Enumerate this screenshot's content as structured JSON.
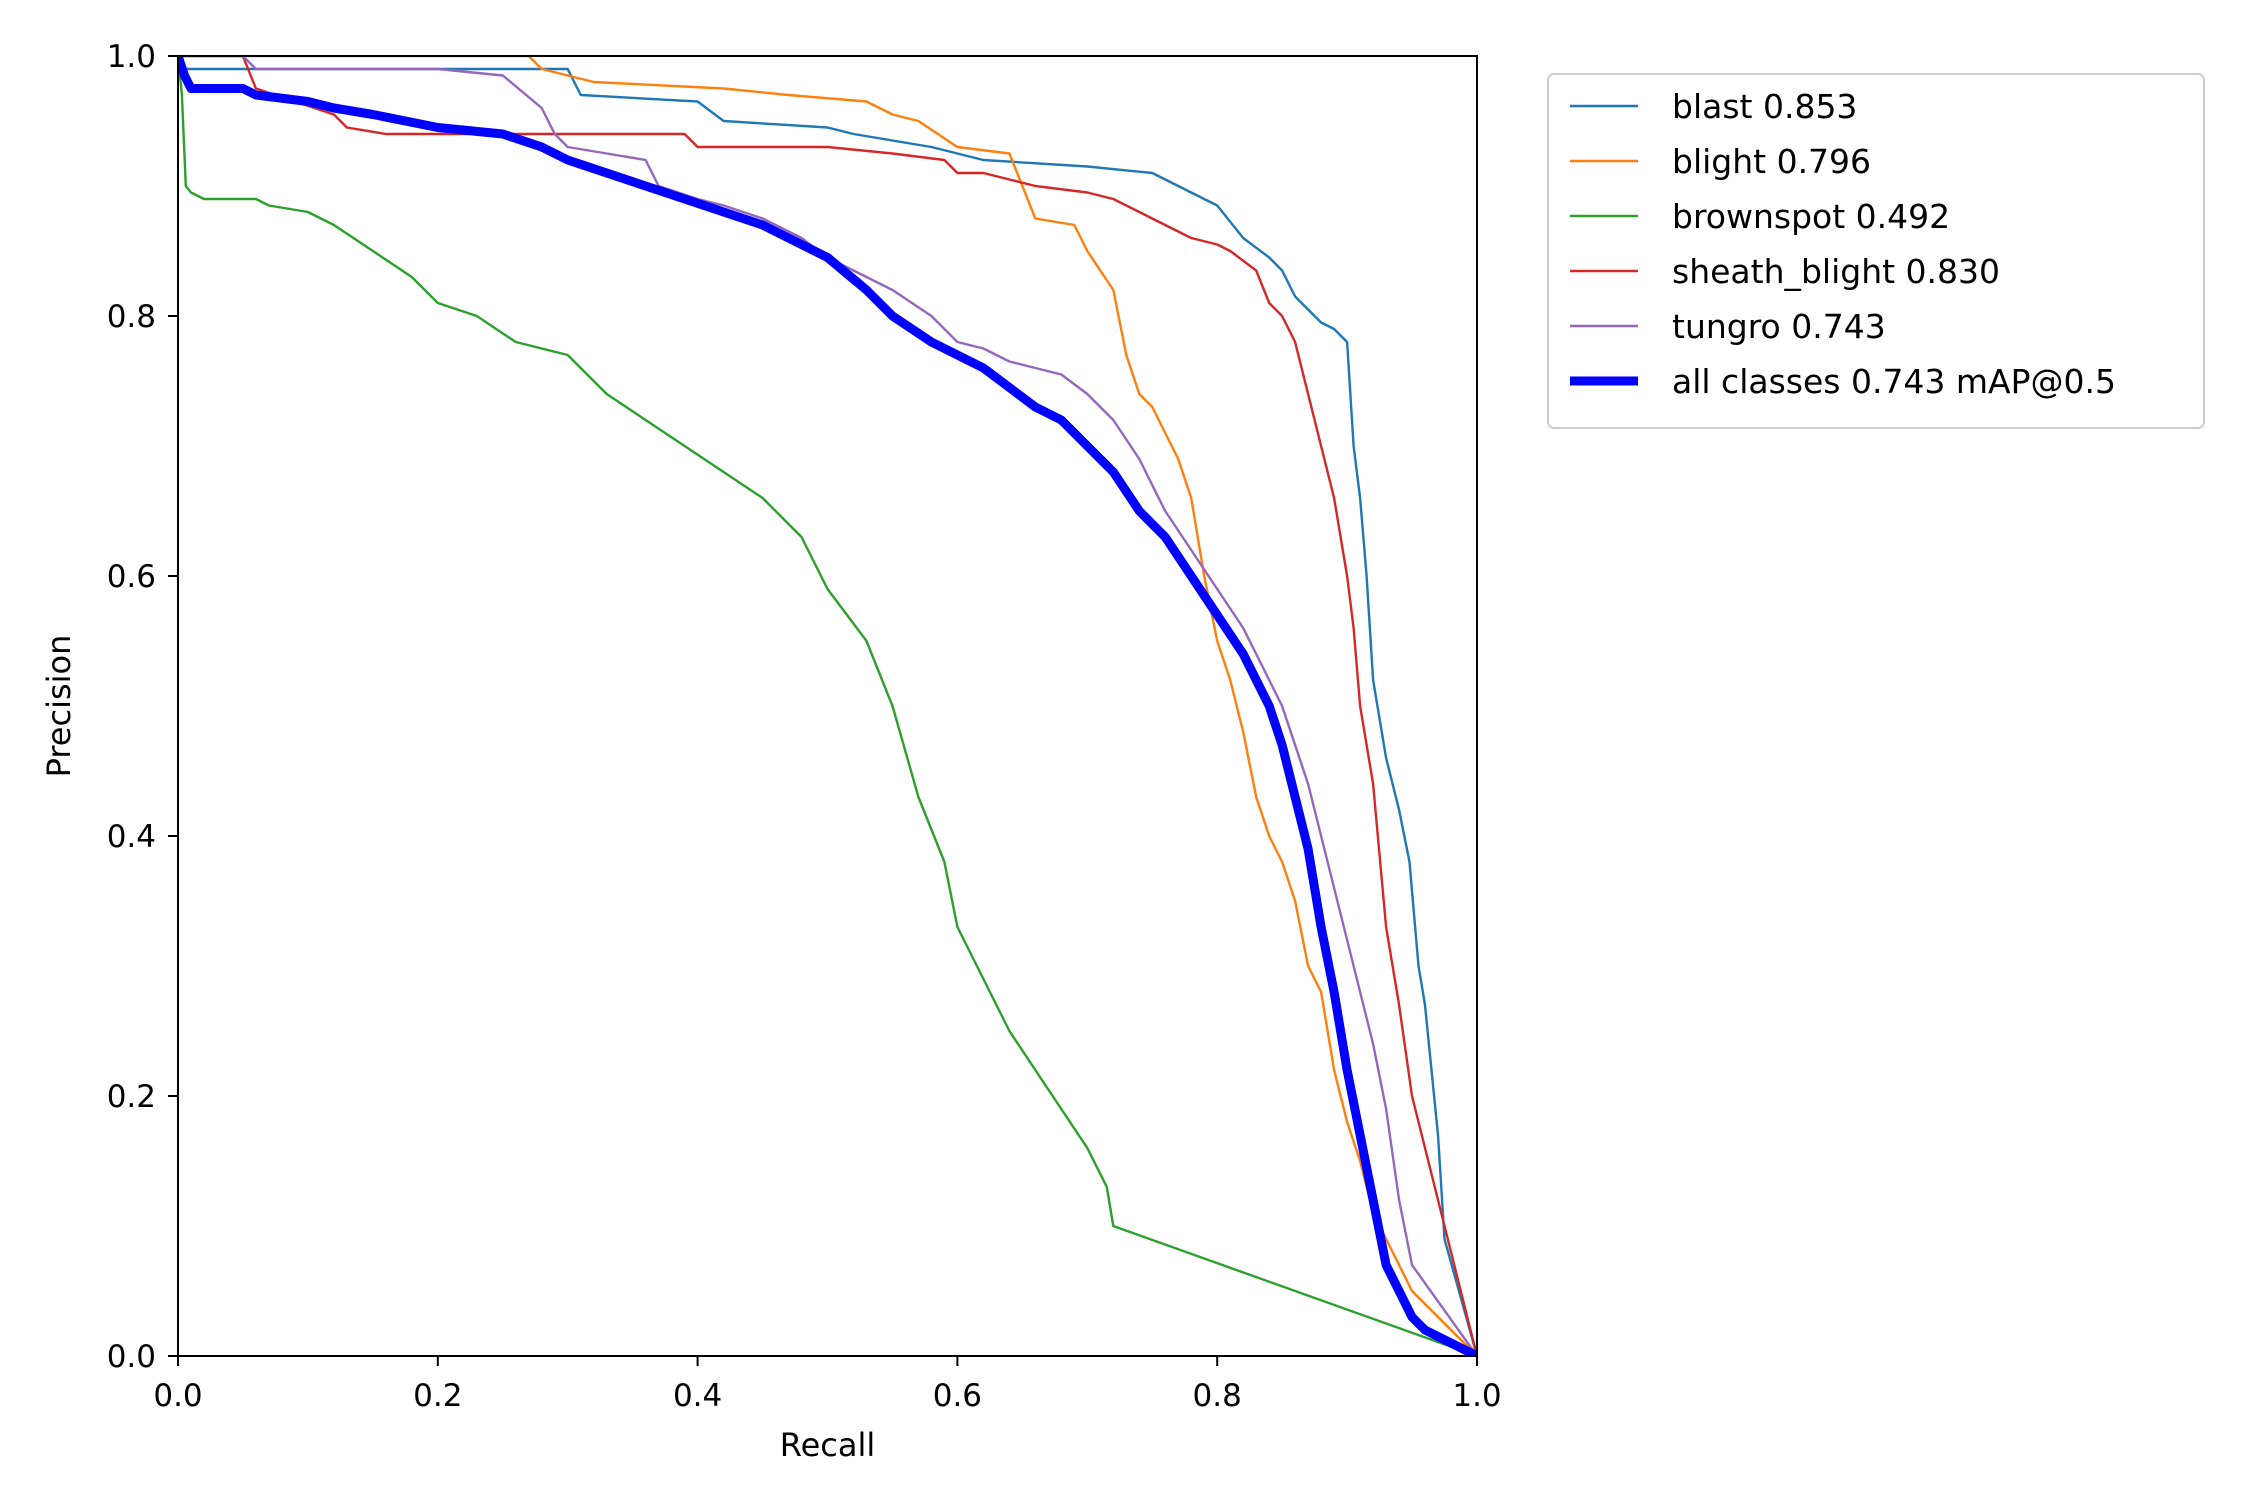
{
  "chart_data": {
    "type": "line",
    "xlabel": "Recall",
    "ylabel": "Precision",
    "xlim": [
      0,
      1
    ],
    "ylim": [
      0,
      1
    ],
    "xticks": [
      "0.0",
      "0.2",
      "0.4",
      "0.6",
      "0.8",
      "1.0"
    ],
    "yticks": [
      "0.0",
      "0.2",
      "0.4",
      "0.6",
      "0.8",
      "1.0"
    ],
    "grid": false,
    "legend_position": "outside-top-right",
    "series": [
      {
        "name": "blast 0.853",
        "color": "#1f77b4",
        "line_width": "thin",
        "x": [
          0.0,
          0.005,
          0.01,
          0.06,
          0.3,
          0.31,
          0.4,
          0.42,
          0.5,
          0.52,
          0.58,
          0.6,
          0.62,
          0.7,
          0.75,
          0.78,
          0.8,
          0.82,
          0.84,
          0.85,
          0.86,
          0.87,
          0.88,
          0.89,
          0.9,
          0.905,
          0.91,
          0.915,
          0.92,
          0.93,
          0.94,
          0.948,
          0.955,
          0.96,
          0.965,
          0.97,
          0.975,
          1.0
        ],
        "y": [
          1.0,
          0.99,
          0.99,
          0.99,
          0.99,
          0.97,
          0.965,
          0.95,
          0.945,
          0.94,
          0.93,
          0.925,
          0.92,
          0.915,
          0.91,
          0.895,
          0.885,
          0.86,
          0.845,
          0.835,
          0.815,
          0.805,
          0.795,
          0.79,
          0.78,
          0.7,
          0.66,
          0.6,
          0.52,
          0.46,
          0.42,
          0.38,
          0.3,
          0.27,
          0.22,
          0.17,
          0.09,
          0.0
        ]
      },
      {
        "name": "blight 0.796",
        "color": "#ff7f0e",
        "line_width": "thin",
        "x": [
          0.0,
          0.05,
          0.27,
          0.28,
          0.32,
          0.42,
          0.47,
          0.53,
          0.55,
          0.57,
          0.6,
          0.64,
          0.65,
          0.66,
          0.69,
          0.7,
          0.72,
          0.73,
          0.74,
          0.75,
          0.76,
          0.77,
          0.78,
          0.79,
          0.8,
          0.81,
          0.82,
          0.83,
          0.84,
          0.85,
          0.86,
          0.87,
          0.88,
          0.89,
          0.9,
          0.91,
          0.92,
          0.93,
          0.94,
          0.95,
          1.0
        ],
        "y": [
          1.0,
          1.0,
          1.0,
          0.99,
          0.98,
          0.975,
          0.97,
          0.965,
          0.955,
          0.95,
          0.93,
          0.925,
          0.9,
          0.875,
          0.87,
          0.85,
          0.82,
          0.77,
          0.74,
          0.73,
          0.71,
          0.69,
          0.66,
          0.6,
          0.55,
          0.52,
          0.48,
          0.43,
          0.4,
          0.38,
          0.35,
          0.3,
          0.28,
          0.22,
          0.18,
          0.15,
          0.11,
          0.09,
          0.07,
          0.05,
          0.0
        ]
      },
      {
        "name": "brownspot 0.492",
        "color": "#2ca02c",
        "line_width": "thin",
        "x": [
          0.0,
          0.003,
          0.006,
          0.01,
          0.02,
          0.06,
          0.07,
          0.1,
          0.12,
          0.15,
          0.18,
          0.2,
          0.23,
          0.26,
          0.3,
          0.33,
          0.36,
          0.39,
          0.42,
          0.45,
          0.48,
          0.5,
          0.53,
          0.55,
          0.57,
          0.59,
          0.6,
          0.62,
          0.64,
          0.66,
          0.68,
          0.7,
          0.71,
          0.715,
          0.72,
          1.0
        ],
        "y": [
          1.0,
          0.97,
          0.9,
          0.895,
          0.89,
          0.89,
          0.885,
          0.88,
          0.87,
          0.85,
          0.83,
          0.81,
          0.8,
          0.78,
          0.77,
          0.74,
          0.72,
          0.7,
          0.68,
          0.66,
          0.63,
          0.59,
          0.55,
          0.5,
          0.43,
          0.38,
          0.33,
          0.29,
          0.25,
          0.22,
          0.19,
          0.16,
          0.14,
          0.13,
          0.1,
          0.0
        ]
      },
      {
        "name": "sheath_blight 0.830",
        "color": "#d62728",
        "line_width": "thin",
        "x": [
          0.0,
          0.05,
          0.06,
          0.12,
          0.13,
          0.16,
          0.18,
          0.2,
          0.3,
          0.31,
          0.39,
          0.4,
          0.49,
          0.5,
          0.55,
          0.59,
          0.6,
          0.62,
          0.64,
          0.66,
          0.7,
          0.72,
          0.74,
          0.76,
          0.78,
          0.8,
          0.81,
          0.83,
          0.84,
          0.85,
          0.86,
          0.87,
          0.88,
          0.89,
          0.9,
          0.905,
          0.91,
          0.92,
          0.93,
          0.94,
          0.95,
          1.0
        ],
        "y": [
          1.0,
          1.0,
          0.975,
          0.955,
          0.945,
          0.94,
          0.94,
          0.94,
          0.94,
          0.94,
          0.94,
          0.93,
          0.93,
          0.93,
          0.925,
          0.92,
          0.91,
          0.91,
          0.905,
          0.9,
          0.895,
          0.89,
          0.88,
          0.87,
          0.86,
          0.855,
          0.85,
          0.835,
          0.81,
          0.8,
          0.78,
          0.74,
          0.7,
          0.66,
          0.6,
          0.56,
          0.5,
          0.44,
          0.33,
          0.27,
          0.2,
          0.0
        ]
      },
      {
        "name": "tungro 0.743",
        "color": "#9467bd",
        "line_width": "thin",
        "x": [
          0.0,
          0.05,
          0.06,
          0.1,
          0.2,
          0.25,
          0.28,
          0.29,
          0.3,
          0.33,
          0.36,
          0.37,
          0.4,
          0.42,
          0.45,
          0.48,
          0.5,
          0.53,
          0.55,
          0.58,
          0.6,
          0.62,
          0.64,
          0.66,
          0.68,
          0.7,
          0.72,
          0.74,
          0.76,
          0.78,
          0.8,
          0.82,
          0.83,
          0.85,
          0.86,
          0.87,
          0.88,
          0.89,
          0.9,
          0.91,
          0.92,
          0.93,
          0.94,
          0.95,
          1.0
        ],
        "y": [
          1.0,
          1.0,
          0.99,
          0.99,
          0.99,
          0.985,
          0.96,
          0.94,
          0.93,
          0.925,
          0.92,
          0.9,
          0.89,
          0.885,
          0.875,
          0.86,
          0.845,
          0.83,
          0.82,
          0.8,
          0.78,
          0.775,
          0.765,
          0.76,
          0.755,
          0.74,
          0.72,
          0.69,
          0.65,
          0.62,
          0.59,
          0.56,
          0.54,
          0.5,
          0.47,
          0.44,
          0.4,
          0.36,
          0.32,
          0.28,
          0.24,
          0.19,
          0.12,
          0.07,
          0.0
        ]
      },
      {
        "name": "all classes 0.743 mAP@0.5",
        "color": "#0000ff",
        "line_width": "thick",
        "x": [
          0.0,
          0.005,
          0.01,
          0.05,
          0.06,
          0.1,
          0.12,
          0.15,
          0.2,
          0.25,
          0.28,
          0.3,
          0.33,
          0.36,
          0.39,
          0.42,
          0.45,
          0.48,
          0.5,
          0.53,
          0.55,
          0.58,
          0.6,
          0.62,
          0.64,
          0.66,
          0.68,
          0.7,
          0.72,
          0.74,
          0.76,
          0.78,
          0.8,
          0.82,
          0.84,
          0.85,
          0.86,
          0.87,
          0.88,
          0.89,
          0.9,
          0.91,
          0.92,
          0.93,
          0.94,
          0.95,
          0.96,
          1.0
        ],
        "y": [
          1.0,
          0.985,
          0.975,
          0.975,
          0.97,
          0.965,
          0.96,
          0.955,
          0.945,
          0.94,
          0.93,
          0.92,
          0.91,
          0.9,
          0.89,
          0.88,
          0.87,
          0.855,
          0.845,
          0.82,
          0.8,
          0.78,
          0.77,
          0.76,
          0.745,
          0.73,
          0.72,
          0.7,
          0.68,
          0.65,
          0.63,
          0.6,
          0.57,
          0.54,
          0.5,
          0.47,
          0.43,
          0.39,
          0.33,
          0.28,
          0.22,
          0.17,
          0.12,
          0.07,
          0.05,
          0.03,
          0.02,
          0.0
        ]
      }
    ]
  }
}
